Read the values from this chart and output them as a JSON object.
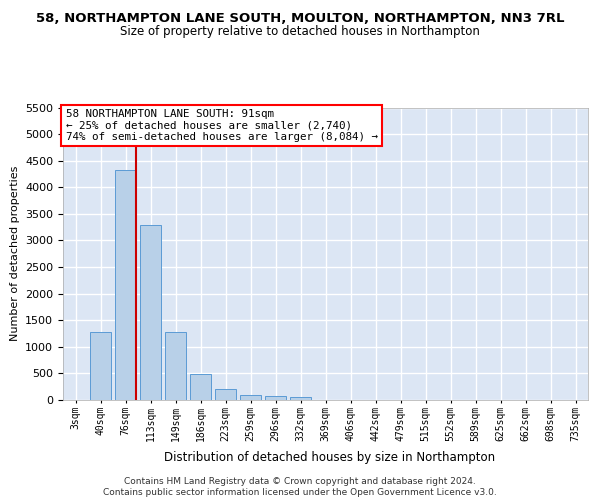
{
  "title": "58, NORTHAMPTON LANE SOUTH, MOULTON, NORTHAMPTON, NN3 7RL",
  "subtitle": "Size of property relative to detached houses in Northampton",
  "xlabel": "Distribution of detached houses by size in Northampton",
  "ylabel": "Number of detached properties",
  "bar_color": "#b8d0e8",
  "bar_edge_color": "#5b9bd5",
  "background_color": "#dce6f4",
  "grid_color": "#ffffff",
  "categories": [
    "3sqm",
    "40sqm",
    "76sqm",
    "113sqm",
    "149sqm",
    "186sqm",
    "223sqm",
    "259sqm",
    "296sqm",
    "332sqm",
    "369sqm",
    "406sqm",
    "442sqm",
    "479sqm",
    "515sqm",
    "552sqm",
    "589sqm",
    "625sqm",
    "662sqm",
    "698sqm",
    "735sqm"
  ],
  "values": [
    0,
    1270,
    4330,
    3300,
    1280,
    490,
    215,
    90,
    70,
    55,
    0,
    0,
    0,
    0,
    0,
    0,
    0,
    0,
    0,
    0,
    0
  ],
  "vline_x_index": 2.42,
  "vline_color": "#cc0000",
  "ylim_max": 5500,
  "yticks": [
    0,
    500,
    1000,
    1500,
    2000,
    2500,
    3000,
    3500,
    4000,
    4500,
    5000,
    5500
  ],
  "annotation_text": "58 NORTHAMPTON LANE SOUTH: 91sqm\n← 25% of detached houses are smaller (2,740)\n74% of semi-detached houses are larger (8,084) →",
  "footer_line1": "Contains HM Land Registry data © Crown copyright and database right 2024.",
  "footer_line2": "Contains public sector information licensed under the Open Government Licence v3.0."
}
